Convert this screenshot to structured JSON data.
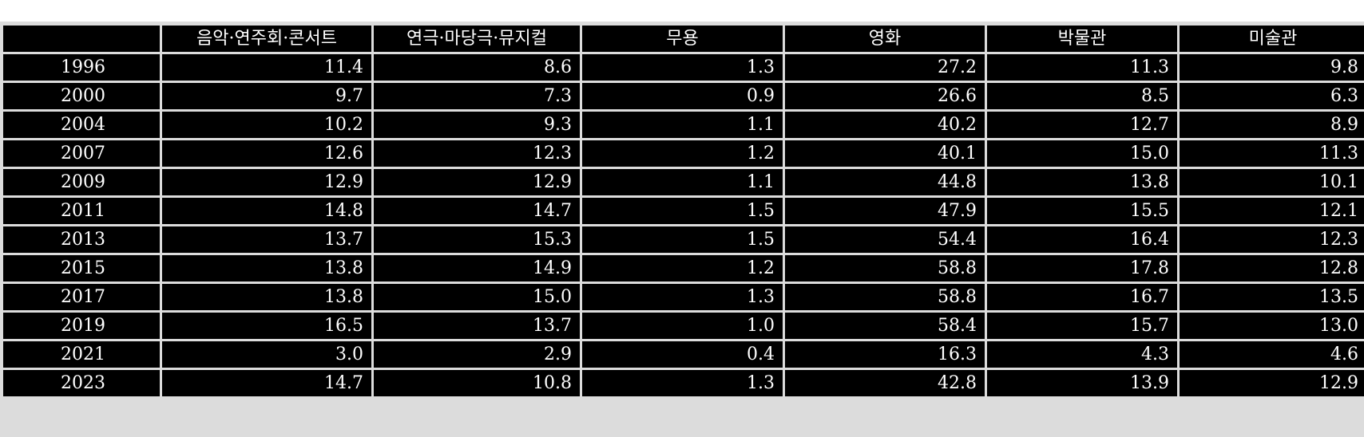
{
  "chart_data": {
    "type": "table",
    "title": "",
    "corner_label": "",
    "columns": [
      "음악·연주회·콘서트",
      "연극·마당극·뮤지컬",
      "무용",
      "영화",
      "박물관",
      "미술관"
    ],
    "rows": [
      {
        "year": "1996",
        "values": [
          "11.4",
          "8.6",
          "1.3",
          "27.2",
          "11.3",
          "9.8"
        ]
      },
      {
        "year": "2000",
        "values": [
          "9.7",
          "7.3",
          "0.9",
          "26.6",
          "8.5",
          "6.3"
        ]
      },
      {
        "year": "2004",
        "values": [
          "10.2",
          "9.3",
          "1.1",
          "40.2",
          "12.7",
          "8.9"
        ]
      },
      {
        "year": "2007",
        "values": [
          "12.6",
          "12.3",
          "1.2",
          "40.1",
          "15.0",
          "11.3"
        ]
      },
      {
        "year": "2009",
        "values": [
          "12.9",
          "12.9",
          "1.1",
          "44.8",
          "13.8",
          "10.1"
        ]
      },
      {
        "year": "2011",
        "values": [
          "14.8",
          "14.7",
          "1.5",
          "47.9",
          "15.5",
          "12.1"
        ]
      },
      {
        "year": "2013",
        "values": [
          "13.7",
          "15.3",
          "1.5",
          "54.4",
          "16.4",
          "12.3"
        ]
      },
      {
        "year": "2015",
        "values": [
          "13.8",
          "14.9",
          "1.2",
          "58.8",
          "17.8",
          "12.8"
        ]
      },
      {
        "year": "2017",
        "values": [
          "13.8",
          "15.0",
          "1.3",
          "58.8",
          "16.7",
          "13.5"
        ]
      },
      {
        "year": "2019",
        "values": [
          "16.5",
          "13.7",
          "1.0",
          "58.4",
          "15.7",
          "13.0"
        ]
      },
      {
        "year": "2021",
        "values": [
          "3.0",
          "2.9",
          "0.4",
          "16.3",
          "4.3",
          "4.6"
        ]
      },
      {
        "year": "2023",
        "values": [
          "14.7",
          "10.8",
          "1.3",
          "42.8",
          "13.9",
          "12.9"
        ]
      }
    ]
  },
  "colors": {
    "cell_background": "#000000",
    "cell_text": "#ffffff",
    "grid_lines": "#dcdcdc",
    "page_background": "#ffffff"
  }
}
